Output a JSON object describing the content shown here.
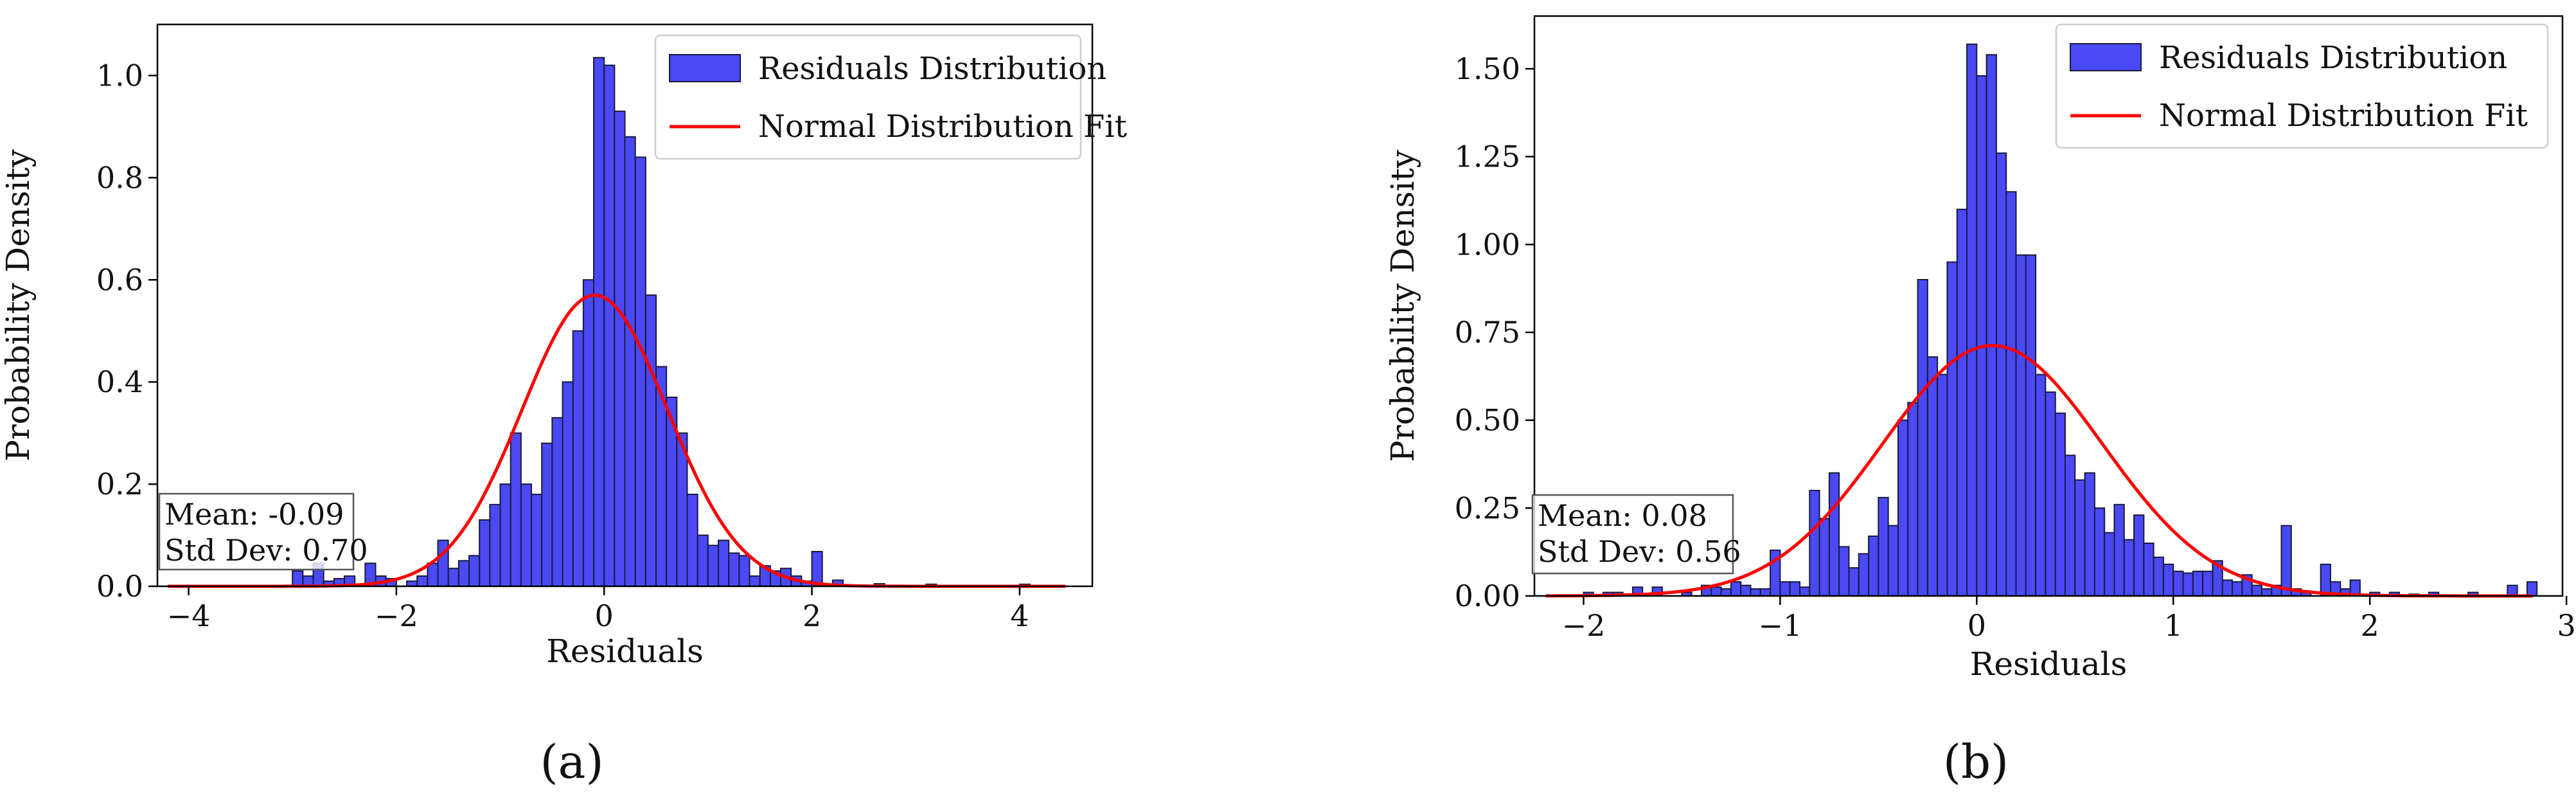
{
  "figure": {
    "panel_labels": [
      "(a)",
      "(b)"
    ]
  },
  "chart_data": [
    {
      "id": "a",
      "type": "bar",
      "panel_label": "(a)",
      "xlabel": "Residuals",
      "ylabel": "Probability Density",
      "xlim": [
        -4.3,
        4.7
      ],
      "ylim": [
        0,
        1.1
      ],
      "x_ticks": [
        -4,
        -2,
        0,
        2,
        4
      ],
      "y_ticks": [
        0.0,
        0.2,
        0.4,
        0.6,
        0.8,
        1.0
      ],
      "y_tick_labels": [
        "0.0",
        "0.2",
        "0.4",
        "0.6",
        "0.8",
        "1.0"
      ],
      "grid": false,
      "legend": {
        "placement": "top-right",
        "entries": [
          {
            "label": "Residuals Distribution",
            "kind": "bar",
            "color": "#3a3af5"
          },
          {
            "label": "Normal Distribution Fit",
            "kind": "line",
            "color": "#ff0000"
          }
        ]
      },
      "stats_box": {
        "placement": "bottom-left",
        "mean_text": "Mean: -0.09",
        "std_text": "Std Dev: 0.70"
      },
      "fit": {
        "mean": -0.09,
        "std": 0.7,
        "color": "#ff0000"
      },
      "bar_color": "#3a3af5",
      "bin_width": 0.1,
      "bins": [
        {
          "x": -3.0,
          "y": 0.03
        },
        {
          "x": -2.9,
          "y": 0.02
        },
        {
          "x": -2.8,
          "y": 0.045
        },
        {
          "x": -2.7,
          "y": 0.01
        },
        {
          "x": -2.6,
          "y": 0.015
        },
        {
          "x": -2.5,
          "y": 0.02
        },
        {
          "x": -2.3,
          "y": 0.045
        },
        {
          "x": -2.2,
          "y": 0.02
        },
        {
          "x": -2.1,
          "y": 0.015
        },
        {
          "x": -1.9,
          "y": 0.01
        },
        {
          "x": -1.8,
          "y": 0.02
        },
        {
          "x": -1.7,
          "y": 0.045
        },
        {
          "x": -1.6,
          "y": 0.09
        },
        {
          "x": -1.5,
          "y": 0.035
        },
        {
          "x": -1.4,
          "y": 0.05
        },
        {
          "x": -1.3,
          "y": 0.06
        },
        {
          "x": -1.2,
          "y": 0.13
        },
        {
          "x": -1.1,
          "y": 0.16
        },
        {
          "x": -1.0,
          "y": 0.2
        },
        {
          "x": -0.9,
          "y": 0.3
        },
        {
          "x": -0.8,
          "y": 0.2
        },
        {
          "x": -0.7,
          "y": 0.18
        },
        {
          "x": -0.6,
          "y": 0.28
        },
        {
          "x": -0.5,
          "y": 0.33
        },
        {
          "x": -0.4,
          "y": 0.4
        },
        {
          "x": -0.3,
          "y": 0.5
        },
        {
          "x": -0.2,
          "y": 0.6
        },
        {
          "x": -0.1,
          "y": 1.035
        },
        {
          "x": 0.0,
          "y": 1.02
        },
        {
          "x": 0.1,
          "y": 0.93
        },
        {
          "x": 0.2,
          "y": 0.88
        },
        {
          "x": 0.3,
          "y": 0.84
        },
        {
          "x": 0.4,
          "y": 0.57
        },
        {
          "x": 0.5,
          "y": 0.43
        },
        {
          "x": 0.6,
          "y": 0.37
        },
        {
          "x": 0.7,
          "y": 0.3
        },
        {
          "x": 0.8,
          "y": 0.18
        },
        {
          "x": 0.9,
          "y": 0.1
        },
        {
          "x": 1.0,
          "y": 0.08
        },
        {
          "x": 1.1,
          "y": 0.09
        },
        {
          "x": 1.2,
          "y": 0.065
        },
        {
          "x": 1.3,
          "y": 0.06
        },
        {
          "x": 1.4,
          "y": 0.02
        },
        {
          "x": 1.5,
          "y": 0.04
        },
        {
          "x": 1.6,
          "y": 0.03
        },
        {
          "x": 1.7,
          "y": 0.035
        },
        {
          "x": 1.8,
          "y": 0.02
        },
        {
          "x": 1.9,
          "y": 0.01
        },
        {
          "x": 2.0,
          "y": 0.068
        },
        {
          "x": 2.2,
          "y": 0.012
        },
        {
          "x": 2.6,
          "y": 0.005
        },
        {
          "x": 3.1,
          "y": 0.004
        },
        {
          "x": 4.0,
          "y": 0.004
        }
      ]
    },
    {
      "id": "b",
      "type": "bar",
      "panel_label": "(b)",
      "xlabel": "Residuals",
      "ylabel": "Probability Density",
      "xlim": [
        -2.25,
        2.98
      ],
      "ylim": [
        0,
        1.65
      ],
      "x_ticks": [
        -2,
        -1,
        0,
        1,
        2,
        3
      ],
      "y_ticks": [
        0.0,
        0.25,
        0.5,
        0.75,
        1.0,
        1.25,
        1.5
      ],
      "y_tick_labels": [
        "0.00",
        "0.25",
        "0.50",
        "0.75",
        "1.00",
        "1.25",
        "1.50"
      ],
      "grid": false,
      "legend": {
        "placement": "top-right",
        "entries": [
          {
            "label": "Residuals Distribution",
            "kind": "bar",
            "color": "#3a3af5"
          },
          {
            "label": "Normal Distribution Fit",
            "kind": "line",
            "color": "#ff0000"
          }
        ]
      },
      "stats_box": {
        "placement": "bottom-left",
        "mean_text": "Mean: 0.08",
        "std_text": "Std Dev: 0.56"
      },
      "fit": {
        "mean": 0.08,
        "std": 0.56,
        "color": "#ff0000"
      },
      "bar_color": "#3a3af5",
      "bin_width": 0.05,
      "bins": [
        {
          "x": -2.0,
          "y": 0.01
        },
        {
          "x": -1.9,
          "y": 0.01
        },
        {
          "x": -1.85,
          "y": 0.01
        },
        {
          "x": -1.75,
          "y": 0.025
        },
        {
          "x": -1.65,
          "y": 0.025
        },
        {
          "x": -1.5,
          "y": 0.01
        },
        {
          "x": -1.4,
          "y": 0.03
        },
        {
          "x": -1.35,
          "y": 0.025
        },
        {
          "x": -1.3,
          "y": 0.02
        },
        {
          "x": -1.25,
          "y": 0.04
        },
        {
          "x": -1.2,
          "y": 0.03
        },
        {
          "x": -1.15,
          "y": 0.02
        },
        {
          "x": -1.1,
          "y": 0.02
        },
        {
          "x": -1.05,
          "y": 0.13
        },
        {
          "x": -1.0,
          "y": 0.04
        },
        {
          "x": -0.95,
          "y": 0.04
        },
        {
          "x": -0.9,
          "y": 0.025
        },
        {
          "x": -0.85,
          "y": 0.3
        },
        {
          "x": -0.8,
          "y": 0.22
        },
        {
          "x": -0.75,
          "y": 0.35
        },
        {
          "x": -0.7,
          "y": 0.14
        },
        {
          "x": -0.65,
          "y": 0.08
        },
        {
          "x": -0.6,
          "y": 0.12
        },
        {
          "x": -0.55,
          "y": 0.17
        },
        {
          "x": -0.5,
          "y": 0.28
        },
        {
          "x": -0.45,
          "y": 0.2
        },
        {
          "x": -0.4,
          "y": 0.5
        },
        {
          "x": -0.35,
          "y": 0.55
        },
        {
          "x": -0.3,
          "y": 0.9
        },
        {
          "x": -0.25,
          "y": 0.68
        },
        {
          "x": -0.2,
          "y": 0.63
        },
        {
          "x": -0.15,
          "y": 0.95
        },
        {
          "x": -0.1,
          "y": 1.1
        },
        {
          "x": -0.05,
          "y": 1.57
        },
        {
          "x": 0.0,
          "y": 1.48
        },
        {
          "x": 0.05,
          "y": 1.54
        },
        {
          "x": 0.1,
          "y": 1.26
        },
        {
          "x": 0.15,
          "y": 1.15
        },
        {
          "x": 0.2,
          "y": 0.97
        },
        {
          "x": 0.25,
          "y": 0.97
        },
        {
          "x": 0.3,
          "y": 0.63
        },
        {
          "x": 0.35,
          "y": 0.58
        },
        {
          "x": 0.4,
          "y": 0.52
        },
        {
          "x": 0.45,
          "y": 0.4
        },
        {
          "x": 0.5,
          "y": 0.33
        },
        {
          "x": 0.55,
          "y": 0.35
        },
        {
          "x": 0.6,
          "y": 0.25
        },
        {
          "x": 0.65,
          "y": 0.18
        },
        {
          "x": 0.7,
          "y": 0.26
        },
        {
          "x": 0.75,
          "y": 0.16
        },
        {
          "x": 0.8,
          "y": 0.23
        },
        {
          "x": 0.85,
          "y": 0.15
        },
        {
          "x": 0.9,
          "y": 0.11
        },
        {
          "x": 0.95,
          "y": 0.09
        },
        {
          "x": 1.0,
          "y": 0.07
        },
        {
          "x": 1.05,
          "y": 0.065
        },
        {
          "x": 1.1,
          "y": 0.07
        },
        {
          "x": 1.15,
          "y": 0.07
        },
        {
          "x": 1.2,
          "y": 0.1
        },
        {
          "x": 1.25,
          "y": 0.045
        },
        {
          "x": 1.3,
          "y": 0.04
        },
        {
          "x": 1.35,
          "y": 0.06
        },
        {
          "x": 1.4,
          "y": 0.03
        },
        {
          "x": 1.45,
          "y": 0.02
        },
        {
          "x": 1.5,
          "y": 0.03
        },
        {
          "x": 1.55,
          "y": 0.2
        },
        {
          "x": 1.6,
          "y": 0.02
        },
        {
          "x": 1.65,
          "y": 0.01
        },
        {
          "x": 1.75,
          "y": 0.09
        },
        {
          "x": 1.8,
          "y": 0.04
        },
        {
          "x": 1.85,
          "y": 0.02
        },
        {
          "x": 1.9,
          "y": 0.045
        },
        {
          "x": 2.0,
          "y": 0.01
        },
        {
          "x": 2.1,
          "y": 0.01
        },
        {
          "x": 2.2,
          "y": 0.005
        },
        {
          "x": 2.3,
          "y": 0.01
        },
        {
          "x": 2.5,
          "y": 0.01
        },
        {
          "x": 2.7,
          "y": 0.03
        },
        {
          "x": 2.8,
          "y": 0.04
        }
      ]
    }
  ]
}
